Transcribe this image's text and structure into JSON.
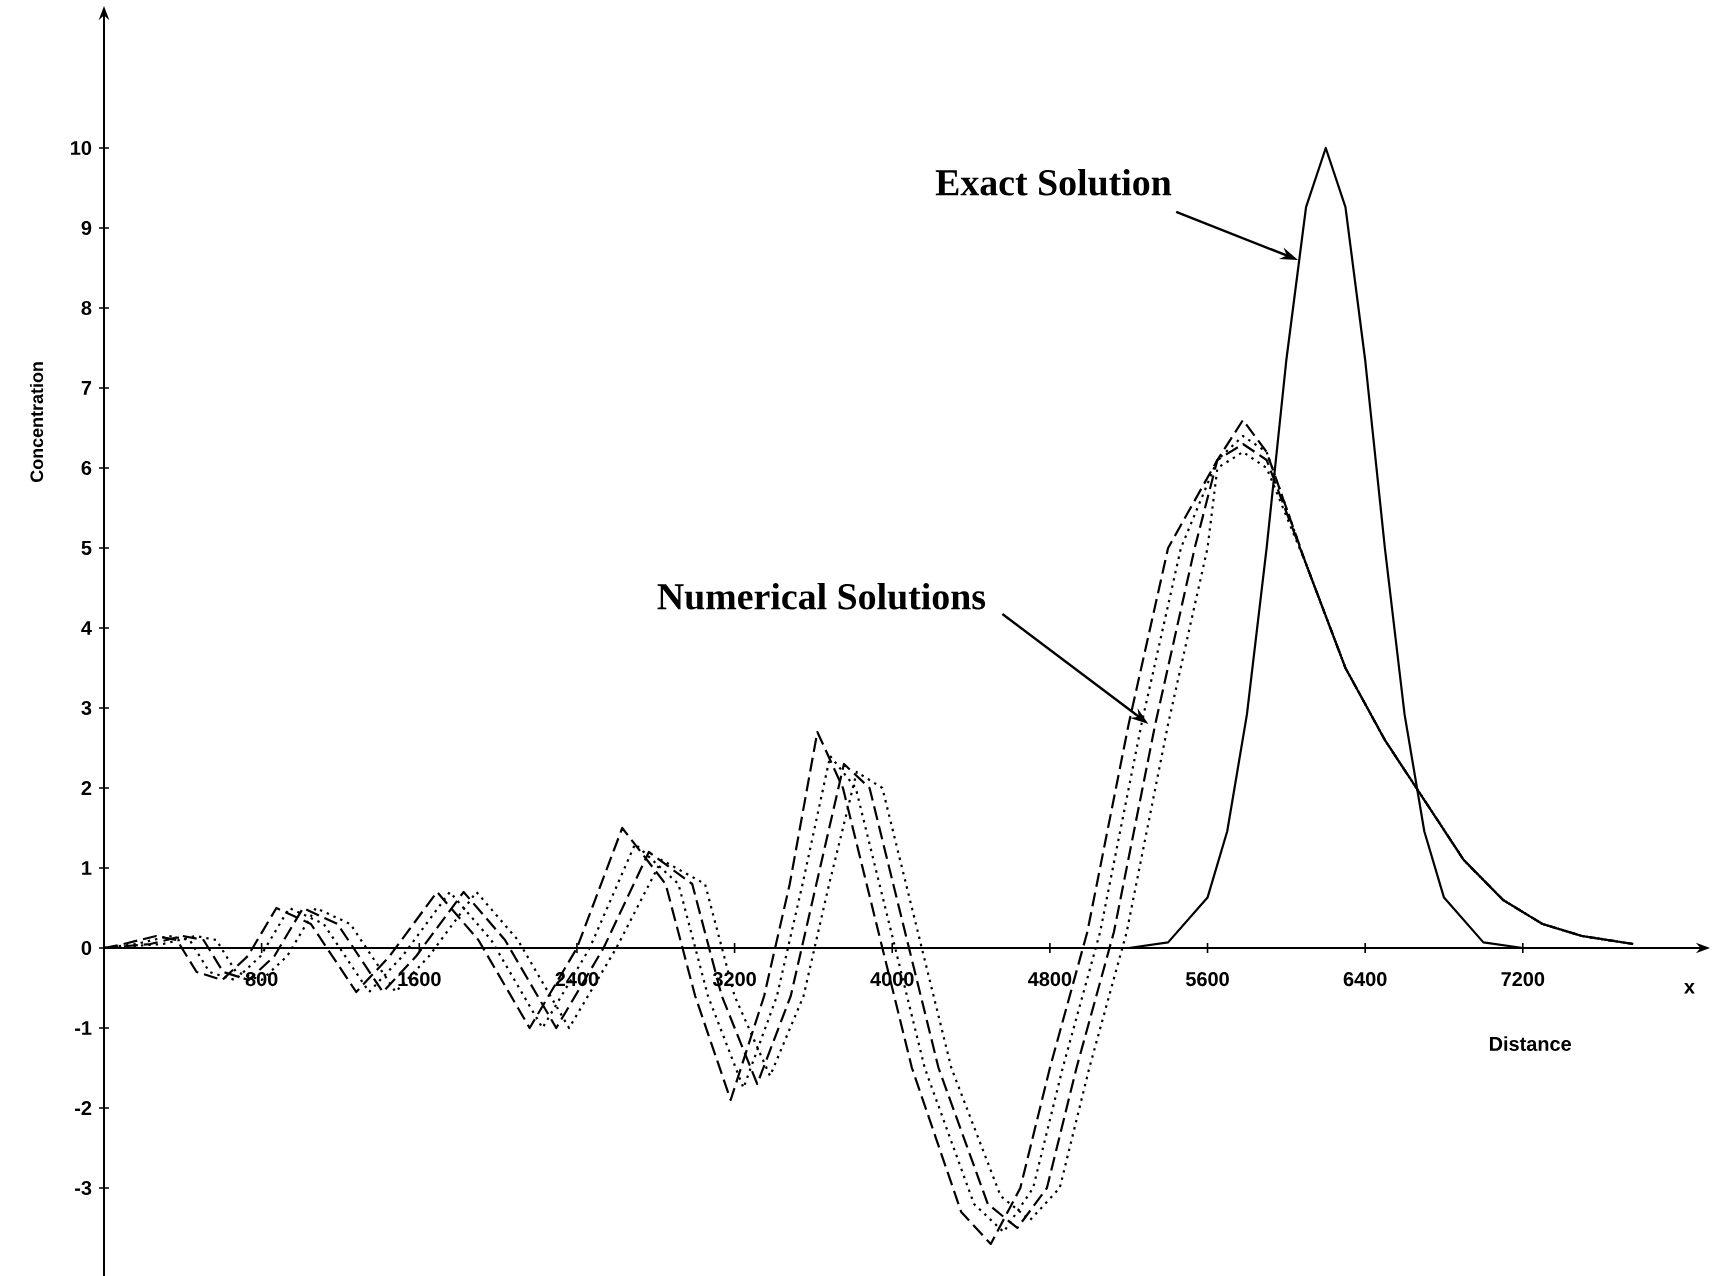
{
  "chart_data": {
    "type": "line",
    "xlabel": "Distance",
    "ylabel": "Concentration",
    "annotations": [
      {
        "text": "Exact Solution",
        "x": 6060,
        "y": 8.6
      },
      {
        "text": "Numerical Solutions",
        "x": 5300,
        "y": 2.8
      },
      "x"
    ],
    "xlim": [
      0,
      8150
    ],
    "ylim": [
      -4.1,
      11.6
    ],
    "xticks": [
      800,
      1600,
      2400,
      3200,
      4000,
      4800,
      5600,
      6400,
      7200
    ],
    "yticks": [
      -3,
      -2,
      -1,
      0,
      1,
      2,
      3,
      4,
      5,
      6,
      7,
      8,
      9,
      10
    ],
    "series": [
      {
        "color": "#000000",
        "line_style": "solid",
        "x": [
          5200,
          5400,
          5600,
          5700,
          5800,
          5900,
          6000,
          6100,
          6200,
          6300,
          6400,
          6500,
          6600,
          6700,
          6800,
          7000,
          7200
        ],
        "values": [
          0.0,
          0.07,
          0.63,
          1.46,
          2.92,
          5.0,
          7.35,
          9.26,
          10,
          9.26,
          7.35,
          5.0,
          2.92,
          1.46,
          0.63,
          0.07,
          0.0
        ]
      },
      {
        "color": "#000000",
        "line_style": "dashed",
        "x": [
          0,
          100,
          265,
          370,
          470,
          600,
          730,
          875,
          1050,
          1280,
          1450,
          1690,
          1900,
          2160,
          2400,
          2630,
          2850,
          3000,
          3180,
          3350,
          3480,
          3620,
          3750,
          3900,
          4100,
          4350,
          4500,
          4650,
          4800,
          4990,
          5200,
          5400,
          5650,
          5780,
          5900,
          6100,
          6300,
          6500,
          6660,
          6900,
          7100,
          7300,
          7500,
          7760
        ],
        "values": [
          0,
          0.05,
          0.15,
          0.1,
          -0.3,
          -0.4,
          -0.1,
          0.5,
          0.3,
          -0.55,
          -0.1,
          0.7,
          0.1,
          -1.0,
          0,
          1.5,
          0.8,
          -0.6,
          -1.9,
          -0.6,
          0.8,
          2.7,
          2.0,
          0.5,
          -1.5,
          -3.3,
          -3.7,
          -3.0,
          -1.5,
          0.2,
          2.8,
          5.0,
          6.1,
          6.6,
          6.2,
          4.8,
          3.5,
          2.6,
          2.0,
          1.1,
          0.6,
          0.3,
          0.15,
          0.05
        ]
      },
      {
        "color": "#000000",
        "line_style": "dotted",
        "x": [
          0,
          165,
          330,
          435,
          535,
          665,
          795,
          940,
          1115,
          1345,
          1515,
          1755,
          1965,
          2225,
          2465,
          2695,
          2915,
          3065,
          3245,
          3415,
          3545,
          3685,
          3815,
          3965,
          4165,
          4415,
          4565,
          4715,
          4865,
          5055,
          5265,
          5465,
          5650,
          5780,
          5900,
          6100,
          6300,
          6500,
          6660,
          6900,
          7100,
          7300,
          7500,
          7760
        ],
        "values": [
          0,
          0.05,
          0.15,
          0.1,
          -0.3,
          -0.4,
          -0.1,
          0.5,
          0.3,
          -0.55,
          -0.1,
          0.7,
          0.1,
          -1.0,
          0,
          1.3,
          0.8,
          -0.6,
          -1.75,
          -0.6,
          0.8,
          2.4,
          2.0,
          0.5,
          -1.5,
          -3.2,
          -3.55,
          -3.0,
          -1.5,
          0.2,
          2.8,
          5.0,
          6.1,
          6.4,
          6.2,
          4.8,
          3.5,
          2.6,
          2.0,
          1.1,
          0.6,
          0.3,
          0.15,
          0.05
        ]
      },
      {
        "color": "#000000",
        "line_style": "dashed",
        "x": [
          0,
          235,
          400,
          505,
          605,
          735,
          865,
          1010,
          1185,
          1415,
          1585,
          1825,
          2035,
          2295,
          2535,
          2765,
          2985,
          3135,
          3315,
          3485,
          3615,
          3755,
          3885,
          4035,
          4235,
          4485,
          4635,
          4785,
          4935,
          5125,
          5335,
          5535,
          5650,
          5780,
          5900,
          6100,
          6300,
          6500,
          6660,
          6900,
          7100,
          7300,
          7500,
          7760
        ],
        "values": [
          0,
          0.05,
          0.15,
          0.1,
          -0.3,
          -0.4,
          -0.1,
          0.5,
          0.3,
          -0.55,
          -0.1,
          0.7,
          0.1,
          -1.0,
          0,
          1.2,
          0.8,
          -0.6,
          -1.7,
          -0.6,
          0.8,
          2.3,
          2.0,
          0.5,
          -1.5,
          -3.2,
          -3.5,
          -3.0,
          -1.5,
          0.2,
          2.8,
          5.0,
          6.1,
          6.3,
          6.1,
          4.8,
          3.5,
          2.6,
          2.0,
          1.1,
          0.6,
          0.3,
          0.15,
          0.05
        ]
      },
      {
        "color": "#000000",
        "line_style": "dotted",
        "x": [
          0,
          300,
          465,
          570,
          670,
          800,
          930,
          1075,
          1250,
          1480,
          1650,
          1890,
          2100,
          2360,
          2600,
          2830,
          3050,
          3200,
          3380,
          3550,
          3680,
          3820,
          3950,
          4100,
          4300,
          4550,
          4700,
          4850,
          5000,
          5190,
          5400,
          5600,
          5650,
          5780,
          5900,
          6100,
          6300,
          6500,
          6660,
          6900,
          7100,
          7300,
          7500,
          7760
        ],
        "values": [
          0,
          0.05,
          0.15,
          0.1,
          -0.3,
          -0.4,
          -0.1,
          0.5,
          0.3,
          -0.55,
          -0.1,
          0.7,
          0.1,
          -1.0,
          0,
          1.1,
          0.8,
          -0.6,
          -1.6,
          -0.6,
          0.8,
          2.2,
          2.0,
          0.5,
          -1.5,
          -3.1,
          -3.4,
          -3.0,
          -1.5,
          0.2,
          2.8,
          5.0,
          6.0,
          6.2,
          6.0,
          4.8,
          3.5,
          2.6,
          2.0,
          1.1,
          0.6,
          0.3,
          0.15,
          0.05
        ]
      }
    ]
  }
}
